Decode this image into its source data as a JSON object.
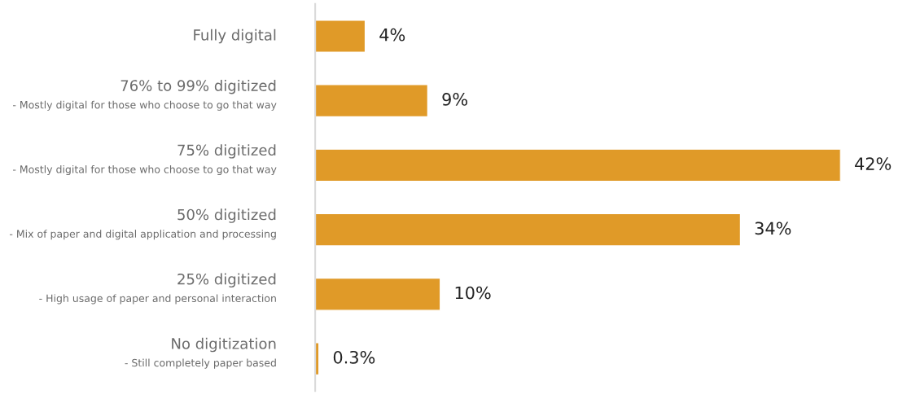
{
  "chart_data": {
    "type": "bar",
    "orientation": "horizontal",
    "categories": [
      "Fully digital",
      "76% to 99% digitized\n- Mostly digital for those who choose to go that way",
      "75% digitized\n- Mostly digital for those who choose to go that way",
      "50% digitized\n- Mix of paper and digital application and processing",
      "25% digitized\n- High usage of paper and personal interaction",
      "No digitization\n- Still completely paper based"
    ],
    "values": [
      4,
      9,
      42,
      34,
      10,
      0.3
    ],
    "value_labels": [
      "4%",
      "9%",
      "42%",
      "34%",
      "10%",
      "0.3%"
    ],
    "color": "#e09a28"
  }
}
